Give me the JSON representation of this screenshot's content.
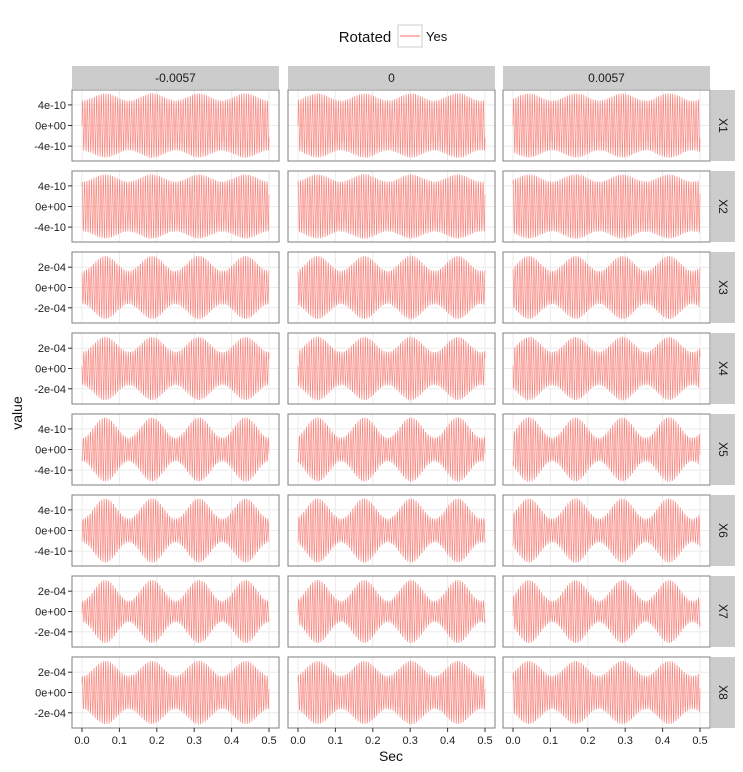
{
  "chart_data": {
    "type": "line",
    "facet_columns": [
      "-0.0057",
      "0",
      "0.0057"
    ],
    "facet_rows": [
      "X1",
      "X2",
      "X3",
      "X4",
      "X5",
      "X6",
      "X7",
      "X8"
    ],
    "xlabel": "Sec",
    "ylabel": "value",
    "xlim": [
      0.0,
      0.5
    ],
    "x_ticks": [
      "0.0",
      "0.1",
      "0.2",
      "0.3",
      "0.4",
      "0.5"
    ],
    "legend": {
      "title": "Rotated",
      "entries": [
        {
          "label": "Yes",
          "color": "#F8766D"
        }
      ],
      "position": "top"
    },
    "rows": [
      {
        "name": "X1",
        "y_ticks": [
          "4e-10",
          "0e+00",
          "-4e-10"
        ],
        "ylim": [
          -6.5e-10,
          6.5e-10
        ],
        "amplitude": 6.2e-10,
        "envelope_min": 4.8e-10,
        "carrier_cycles": 80,
        "envelope_cycles": 4
      },
      {
        "name": "X2",
        "y_ticks": [
          "4e-10",
          "0e+00",
          "-4e-10"
        ],
        "ylim": [
          -6.5e-10,
          6.5e-10
        ],
        "amplitude": 6.2e-10,
        "envelope_min": 4.8e-10,
        "carrier_cycles": 80,
        "envelope_cycles": 4
      },
      {
        "name": "X3",
        "y_ticks": [
          "2e-04",
          "0e+00",
          "-2e-04"
        ],
        "ylim": [
          -0.00033,
          0.00033
        ],
        "amplitude": 0.00031,
        "envelope_min": 0.00016,
        "carrier_cycles": 80,
        "envelope_cycles": 4
      },
      {
        "name": "X4",
        "y_ticks": [
          "2e-04",
          "0e+00",
          "-2e-04"
        ],
        "ylim": [
          -0.00033,
          0.00033
        ],
        "amplitude": 0.00031,
        "envelope_min": 0.00016,
        "carrier_cycles": 80,
        "envelope_cycles": 4
      },
      {
        "name": "X5",
        "y_ticks": [
          "4e-10",
          "0e+00",
          "-4e-10"
        ],
        "ylim": [
          -6.5e-10,
          6.5e-10
        ],
        "amplitude": 6.2e-10,
        "envelope_min": 2.2e-10,
        "carrier_cycles": 80,
        "envelope_cycles": 4
      },
      {
        "name": "X6",
        "y_ticks": [
          "4e-10",
          "0e+00",
          "-4e-10"
        ],
        "ylim": [
          -6.5e-10,
          6.5e-10
        ],
        "amplitude": 6.2e-10,
        "envelope_min": 2.2e-10,
        "carrier_cycles": 80,
        "envelope_cycles": 4
      },
      {
        "name": "X7",
        "y_ticks": [
          "2e-04",
          "0e+00",
          "-2e-04"
        ],
        "ylim": [
          -0.00033,
          0.00033
        ],
        "amplitude": 0.00031,
        "envelope_min": 0.0001,
        "carrier_cycles": 80,
        "envelope_cycles": 4
      },
      {
        "name": "X8",
        "y_ticks": [
          "2e-04",
          "0e+00",
          "-2e-04"
        ],
        "ylim": [
          -0.00033,
          0.00033
        ],
        "amplitude": 0.00031,
        "envelope_min": 0.00016,
        "carrier_cycles": 80,
        "envelope_cycles": 4
      }
    ],
    "grid": true,
    "series_color": "#F8766D",
    "strip_background": "#CCCCCC",
    "panel_border": "#7f7f7f",
    "grid_color": "#EBEBEB"
  }
}
